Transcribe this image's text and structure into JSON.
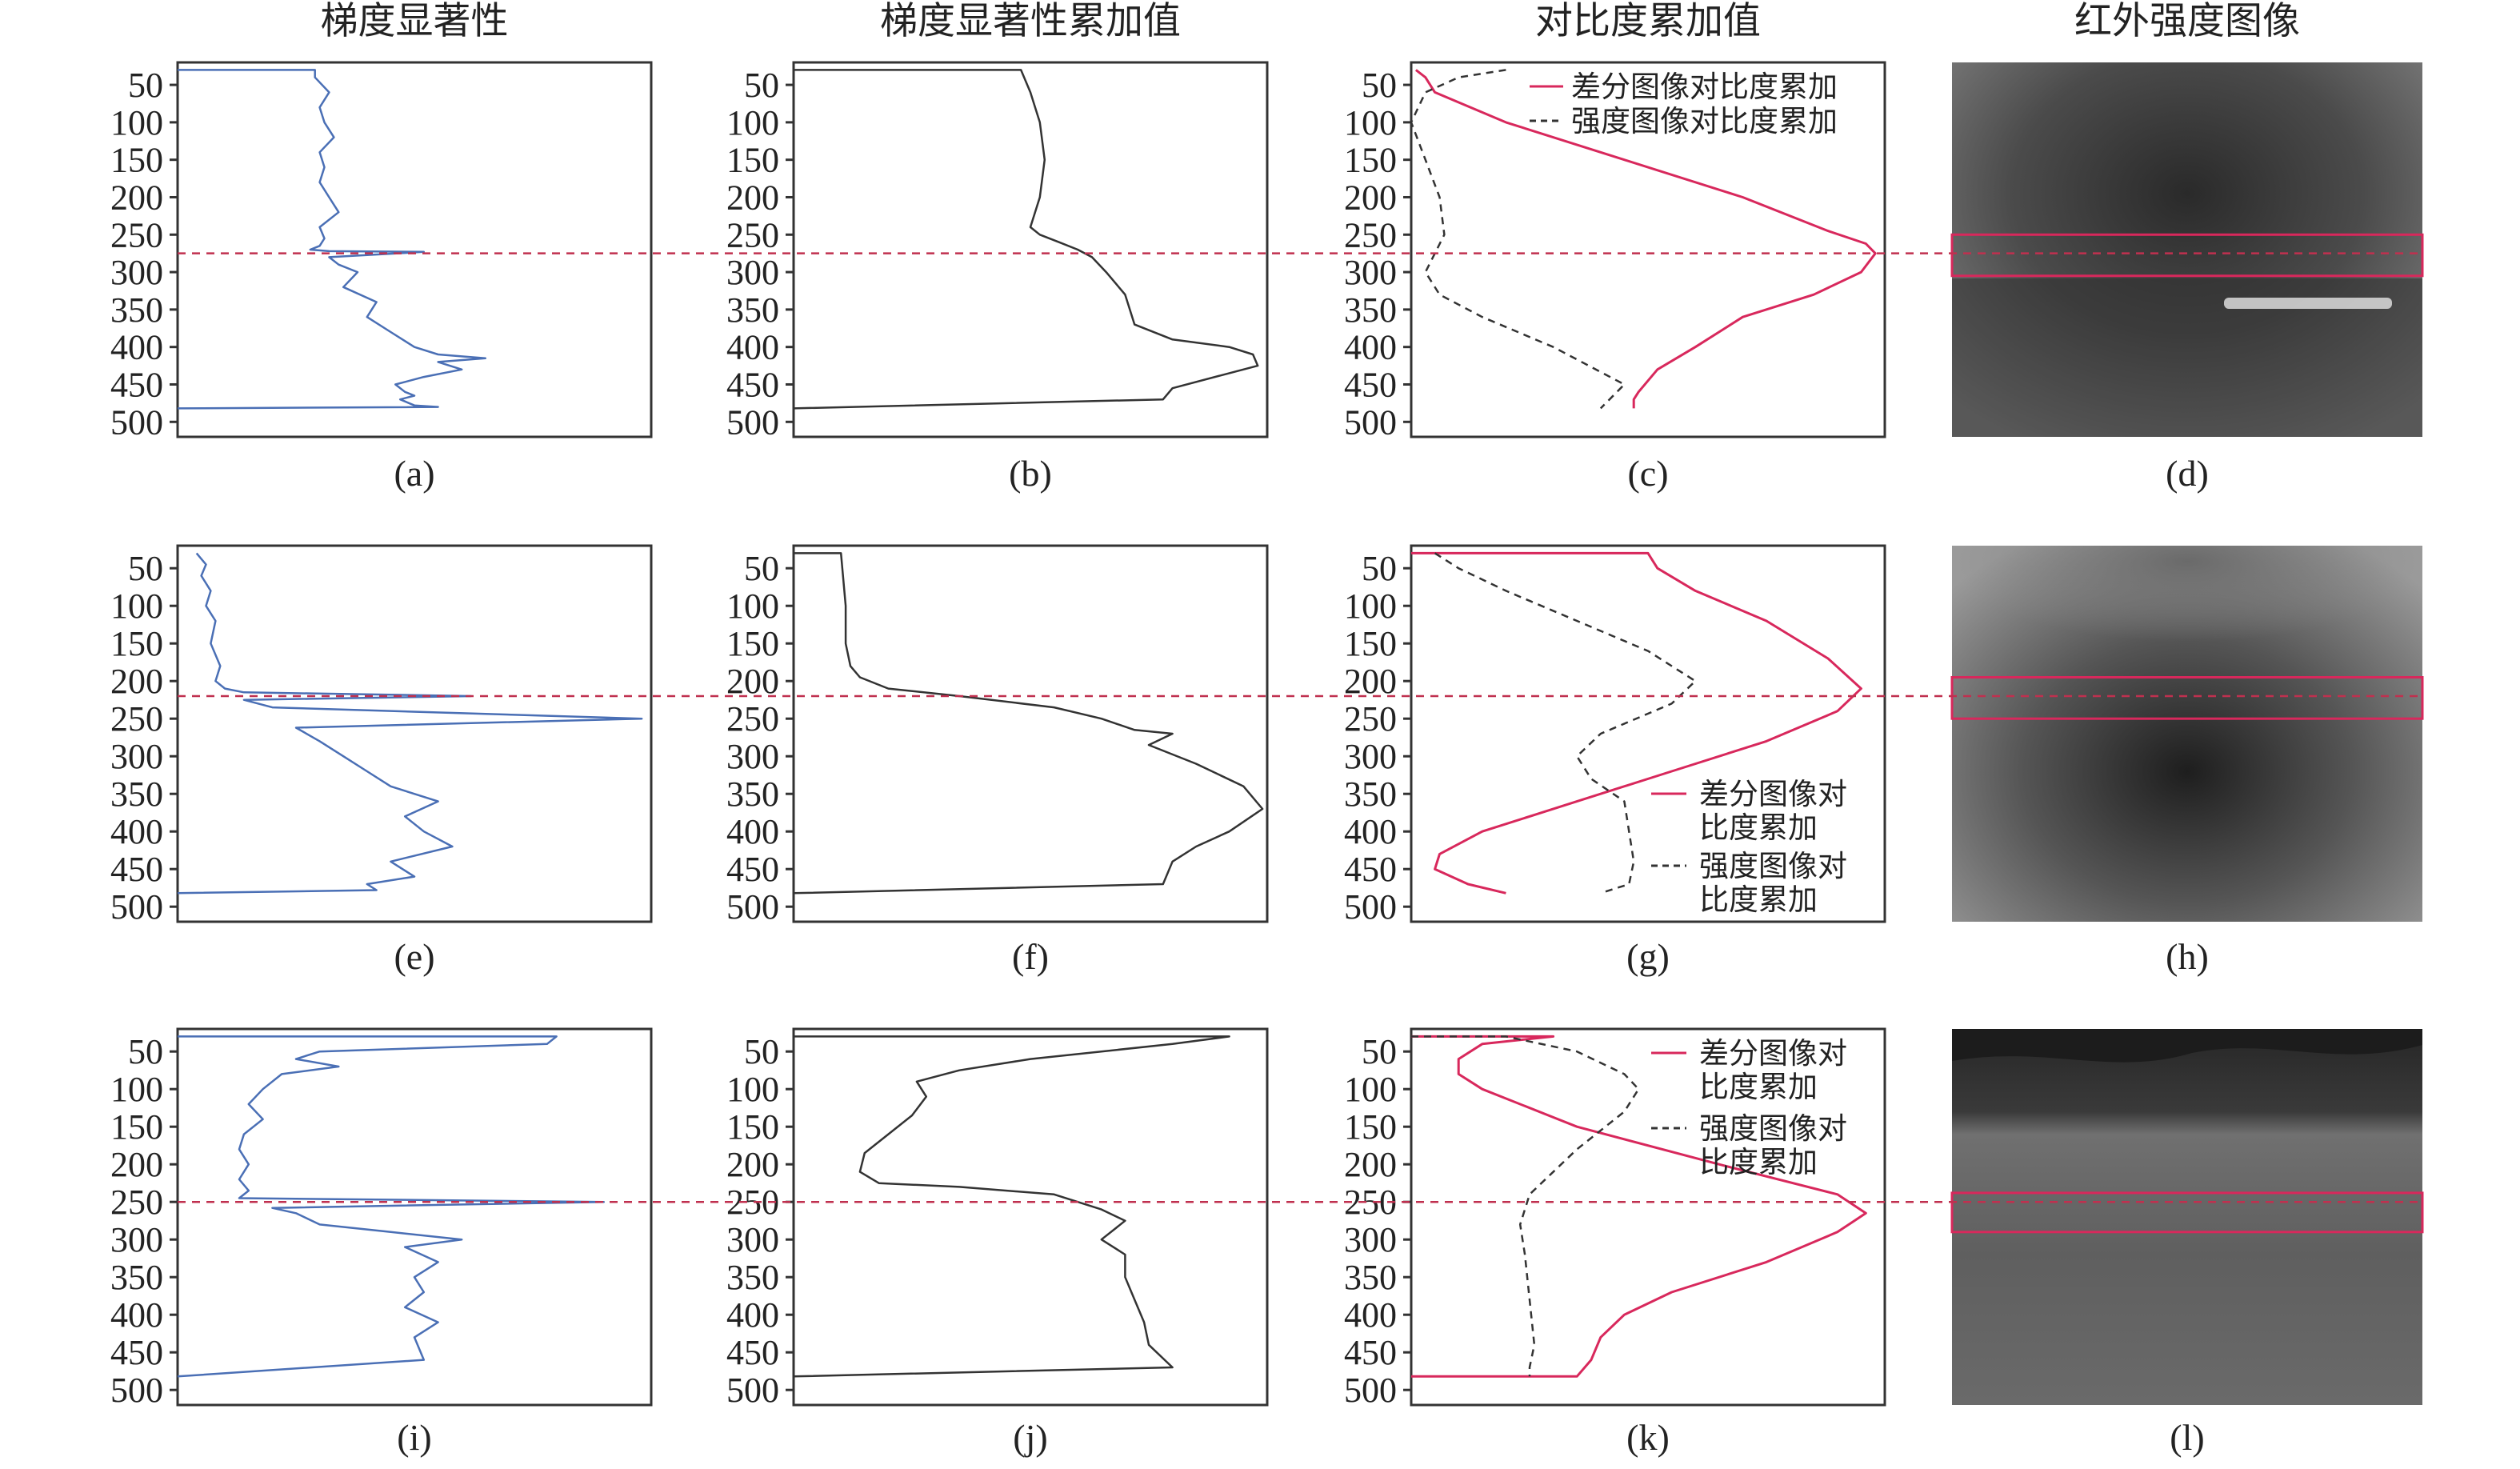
{
  "column_titles": [
    "梯度显著性",
    "梯度显著性累加值",
    "对比度累加值",
    "红外强度图像"
  ],
  "panel_labels": [
    "(a)",
    "(b)",
    "(c)",
    "(d)",
    "(e)",
    "(f)",
    "(g)",
    "(h)",
    "(i)",
    "(j)",
    "(k)",
    "(l)"
  ],
  "colors": {
    "gradient_line": "#4a6fb5",
    "cumulative_line": "#333333",
    "diff_contrast_line": "#d8285c",
    "intensity_contrast_line": "#333333",
    "threshold_line": "#c0304f",
    "highlight_box": "#d8285c"
  },
  "chart_data": [
    {
      "panel": "(a)",
      "type": "line",
      "orientation": "vertical-profile",
      "yticks": [
        50,
        100,
        150,
        200,
        250,
        300,
        350,
        400,
        450,
        500
      ],
      "ylim": [
        520,
        20
      ],
      "xlim": [
        0,
        1
      ],
      "threshold_row": 275,
      "series": [
        {
          "style": "gradient",
          "x": [
            0.0,
            0.29,
            0.29,
            0.32,
            0.3,
            0.31,
            0.33,
            0.3,
            0.31,
            0.3,
            0.32,
            0.34,
            0.3,
            0.31,
            0.3,
            0.28,
            0.32,
            0.52,
            0.32,
            0.34,
            0.38,
            0.35,
            0.42,
            0.4,
            0.45,
            0.5,
            0.55,
            0.65,
            0.55,
            0.6,
            0.52,
            0.46,
            0.48,
            0.5,
            0.47,
            0.5,
            0.55,
            0.0
          ],
          "y": [
            30,
            30,
            40,
            60,
            80,
            100,
            120,
            140,
            160,
            180,
            200,
            220,
            240,
            255,
            265,
            270,
            272,
            273,
            280,
            290,
            300,
            320,
            340,
            360,
            380,
            400,
            410,
            415,
            420,
            430,
            440,
            450,
            460,
            465,
            470,
            478,
            480,
            482
          ]
        }
      ]
    },
    {
      "panel": "(b)",
      "type": "line",
      "orientation": "vertical-profile",
      "yticks": [
        50,
        100,
        150,
        200,
        250,
        300,
        350,
        400,
        450,
        500
      ],
      "ylim": [
        520,
        20
      ],
      "xlim": [
        0,
        1
      ],
      "threshold_row": 275,
      "series": [
        {
          "style": "cumulative",
          "x": [
            0.0,
            0.48,
            0.5,
            0.52,
            0.53,
            0.52,
            0.5,
            0.52,
            0.56,
            0.6,
            0.63,
            0.66,
            0.7,
            0.72,
            0.8,
            0.92,
            0.97,
            0.98,
            0.92,
            0.8,
            0.78,
            0.0
          ],
          "y": [
            30,
            30,
            60,
            100,
            150,
            200,
            240,
            250,
            260,
            270,
            280,
            300,
            330,
            370,
            390,
            400,
            410,
            425,
            435,
            455,
            470,
            482
          ]
        }
      ]
    },
    {
      "panel": "(c)",
      "type": "line",
      "orientation": "vertical-profile",
      "yticks": [
        50,
        100,
        150,
        200,
        250,
        300,
        350,
        400,
        450,
        500
      ],
      "ylim": [
        520,
        20
      ],
      "xlim": [
        0,
        1
      ],
      "threshold_row": 275,
      "series": [
        {
          "name": "差分图像对比度累加",
          "style": "diff",
          "x": [
            0.01,
            0.03,
            0.05,
            0.2,
            0.45,
            0.7,
            0.88,
            0.96,
            0.98,
            0.95,
            0.85,
            0.7,
            0.6,
            0.52,
            0.48,
            0.47,
            0.47
          ],
          "y": [
            30,
            40,
            60,
            100,
            150,
            200,
            245,
            262,
            275,
            300,
            330,
            360,
            400,
            430,
            460,
            470,
            482
          ]
        },
        {
          "name": "强度图像对比度累加",
          "style": "intensity",
          "x": [
            0.2,
            0.1,
            0.03,
            0.0,
            0.03,
            0.06,
            0.07,
            0.05,
            0.03,
            0.06,
            0.15,
            0.3,
            0.45,
            0.4
          ],
          "y": [
            30,
            40,
            60,
            100,
            150,
            200,
            250,
            275,
            300,
            330,
            360,
            400,
            450,
            482
          ]
        }
      ]
    },
    {
      "panel": "(d)",
      "type": "image",
      "threshold_row": 275,
      "highlight_rows": [
        250,
        305
      ]
    },
    {
      "panel": "(e)",
      "type": "line",
      "orientation": "vertical-profile",
      "yticks": [
        50,
        100,
        150,
        200,
        250,
        300,
        350,
        400,
        450,
        500
      ],
      "ylim": [
        520,
        20
      ],
      "xlim": [
        0,
        1
      ],
      "threshold_row": 220,
      "series": [
        {
          "style": "gradient",
          "x": [
            0.04,
            0.06,
            0.05,
            0.07,
            0.06,
            0.08,
            0.07,
            0.09,
            0.08,
            0.1,
            0.14,
            0.62,
            0.14,
            0.2,
            0.98,
            0.25,
            0.3,
            0.35,
            0.4,
            0.45,
            0.55,
            0.48,
            0.52,
            0.58,
            0.45,
            0.5,
            0.4,
            0.42,
            0.0
          ],
          "y": [
            30,
            45,
            60,
            80,
            100,
            120,
            150,
            180,
            200,
            210,
            215,
            220,
            225,
            235,
            250,
            262,
            280,
            300,
            320,
            340,
            360,
            380,
            400,
            420,
            440,
            460,
            470,
            478,
            482
          ]
        }
      ]
    },
    {
      "panel": "(f)",
      "type": "line",
      "orientation": "vertical-profile",
      "yticks": [
        50,
        100,
        150,
        200,
        250,
        300,
        350,
        400,
        450,
        500
      ],
      "ylim": [
        520,
        20
      ],
      "xlim": [
        0,
        1
      ],
      "threshold_row": 220,
      "series": [
        {
          "style": "cumulative",
          "x": [
            0.0,
            0.1,
            0.11,
            0.11,
            0.12,
            0.14,
            0.2,
            0.35,
            0.55,
            0.65,
            0.72,
            0.8,
            0.75,
            0.85,
            0.95,
            0.99,
            0.92,
            0.85,
            0.8,
            0.78,
            0.0
          ],
          "y": [
            30,
            30,
            100,
            150,
            180,
            195,
            210,
            220,
            235,
            250,
            265,
            270,
            285,
            310,
            340,
            370,
            400,
            420,
            440,
            470,
            482
          ]
        }
      ]
    },
    {
      "panel": "(g)",
      "type": "line",
      "orientation": "vertical-profile",
      "yticks": [
        50,
        100,
        150,
        200,
        250,
        300,
        350,
        400,
        450,
        500
      ],
      "ylim": [
        520,
        20
      ],
      "xlim": [
        0,
        1
      ],
      "threshold_row": 220,
      "series": [
        {
          "name": "差分图像对比度累加",
          "style": "diff",
          "x": [
            0.0,
            0.5,
            0.52,
            0.6,
            0.75,
            0.88,
            0.95,
            0.9,
            0.75,
            0.55,
            0.35,
            0.15,
            0.06,
            0.05,
            0.12,
            0.2
          ],
          "y": [
            30,
            30,
            50,
            80,
            120,
            170,
            210,
            240,
            280,
            320,
            360,
            400,
            430,
            450,
            470,
            482
          ]
        },
        {
          "name": "强度图像对比度累加",
          "style": "intensity",
          "x": [
            0.05,
            0.1,
            0.2,
            0.35,
            0.5,
            0.6,
            0.55,
            0.4,
            0.35,
            0.38,
            0.45,
            0.46,
            0.47,
            0.46,
            0.4
          ],
          "y": [
            30,
            50,
            80,
            120,
            160,
            200,
            230,
            270,
            300,
            330,
            360,
            400,
            440,
            470,
            482
          ]
        }
      ]
    },
    {
      "panel": "(h)",
      "type": "image",
      "threshold_row": 220,
      "highlight_rows": [
        195,
        250
      ]
    },
    {
      "panel": "(i)",
      "type": "line",
      "orientation": "vertical-profile",
      "yticks": [
        50,
        100,
        150,
        200,
        250,
        300,
        350,
        400,
        450,
        500
      ],
      "ylim": [
        520,
        20
      ],
      "xlim": [
        0,
        1
      ],
      "threshold_row": 250,
      "series": [
        {
          "style": "gradient",
          "x": [
            0.0,
            0.8,
            0.78,
            0.3,
            0.25,
            0.34,
            0.22,
            0.18,
            0.15,
            0.18,
            0.14,
            0.13,
            0.15,
            0.13,
            0.15,
            0.13,
            0.9,
            0.2,
            0.25,
            0.3,
            0.45,
            0.6,
            0.48,
            0.55,
            0.5,
            0.52,
            0.48,
            0.55,
            0.5,
            0.52,
            0.0
          ],
          "y": [
            30,
            30,
            40,
            50,
            60,
            70,
            80,
            100,
            120,
            140,
            160,
            180,
            200,
            220,
            235,
            245,
            250,
            258,
            265,
            280,
            290,
            300,
            310,
            330,
            350,
            370,
            390,
            410,
            430,
            460,
            482
          ]
        }
      ]
    },
    {
      "panel": "(j)",
      "type": "line",
      "orientation": "vertical-profile",
      "yticks": [
        50,
        100,
        150,
        200,
        250,
        300,
        350,
        400,
        450,
        500
      ],
      "ylim": [
        520,
        20
      ],
      "xlim": [
        0,
        1
      ],
      "threshold_row": 250,
      "series": [
        {
          "style": "cumulative",
          "x": [
            0.0,
            0.92,
            0.8,
            0.5,
            0.35,
            0.26,
            0.28,
            0.25,
            0.2,
            0.15,
            0.14,
            0.18,
            0.35,
            0.55,
            0.65,
            0.7,
            0.68,
            0.65,
            0.7,
            0.7,
            0.72,
            0.74,
            0.75,
            0.8,
            0.0
          ],
          "y": [
            30,
            30,
            40,
            60,
            75,
            90,
            110,
            135,
            160,
            185,
            210,
            225,
            230,
            240,
            260,
            275,
            285,
            300,
            320,
            350,
            380,
            410,
            440,
            470,
            482
          ]
        }
      ]
    },
    {
      "panel": "(k)",
      "type": "line",
      "orientation": "vertical-profile",
      "yticks": [
        50,
        100,
        150,
        200,
        250,
        300,
        350,
        400,
        450,
        500
      ],
      "ylim": [
        520,
        20
      ],
      "xlim": [
        0,
        1
      ],
      "threshold_row": 250,
      "series": [
        {
          "name": "差分图像对比度累加",
          "style": "diff",
          "x": [
            0.0,
            0.3,
            0.15,
            0.1,
            0.1,
            0.15,
            0.35,
            0.65,
            0.9,
            0.96,
            0.9,
            0.75,
            0.55,
            0.45,
            0.4,
            0.38,
            0.35,
            0.0
          ],
          "y": [
            30,
            30,
            40,
            60,
            80,
            100,
            150,
            200,
            240,
            265,
            290,
            330,
            370,
            400,
            430,
            460,
            482,
            482
          ]
        },
        {
          "name": "强度图像对比度累加",
          "style": "intensity",
          "x": [
            0.0,
            0.2,
            0.35,
            0.45,
            0.48,
            0.45,
            0.35,
            0.25,
            0.23,
            0.24,
            0.25,
            0.26,
            0.25,
            0.25
          ],
          "y": [
            30,
            30,
            50,
            80,
            100,
            130,
            180,
            240,
            280,
            320,
            380,
            440,
            470,
            482
          ]
        }
      ]
    },
    {
      "panel": "(l)",
      "type": "image",
      "threshold_row": 250,
      "highlight_rows": [
        238,
        290
      ]
    }
  ],
  "legends": {
    "c": [
      "差分图像对比度累加",
      "强度图像对比度累加"
    ],
    "g": [
      [
        "差分图像对",
        "比度累加"
      ],
      [
        "强度图像对",
        "比度累加"
      ]
    ],
    "k": [
      [
        "差分图像对",
        "比度累加"
      ],
      [
        "强度图像对",
        "比度累加"
      ]
    ]
  }
}
